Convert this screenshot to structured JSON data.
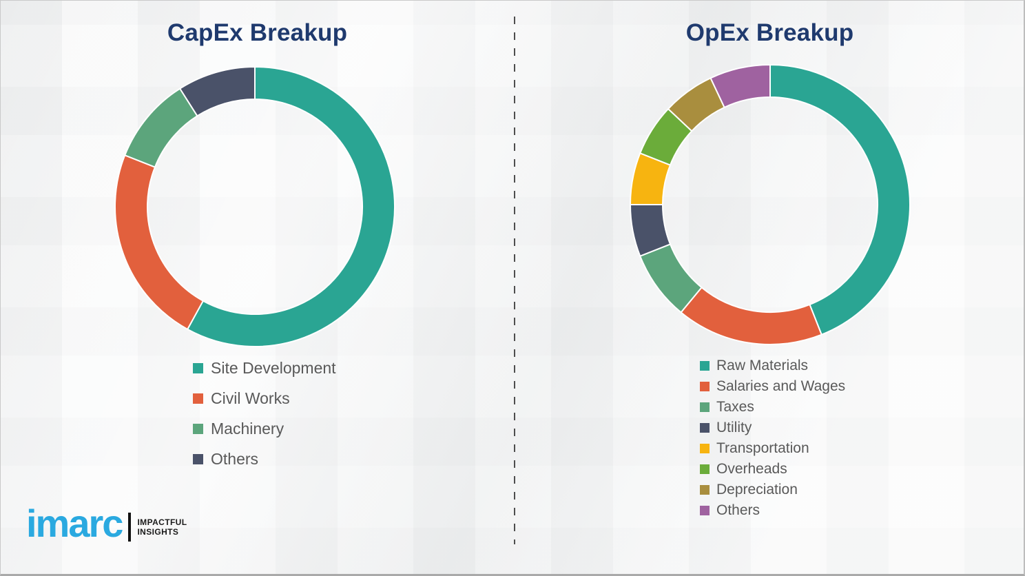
{
  "titles": {
    "capex": "CapEx Breakup",
    "opex": "OpEx Breakup"
  },
  "logo": {
    "brand": "imarc",
    "tagline_line1": "IMPACTFUL",
    "tagline_line2": "INSIGHTS"
  },
  "palette": {
    "teal": "#2aa593",
    "orange": "#e2603d",
    "sage_green": "#5ca57c",
    "dark_navy": "#4a5269",
    "yellow": "#f7b410",
    "bright_green": "#6bac3a",
    "olive": "#a98e3e",
    "purple": "#9f62a0",
    "title_navy": "#1f3a6e",
    "legend_text": "#595959",
    "logo_blue": "#2aa9e0"
  },
  "chart_data": [
    {
      "type": "pie",
      "subtype": "donut",
      "title": "CapEx Breakup",
      "start_angle_deg": 0,
      "direction": "clockwise",
      "legend_position": "below-left",
      "categories": [
        "Site Development",
        "Civil Works",
        "Machinery",
        "Others"
      ],
      "values": [
        58,
        23,
        10,
        9
      ],
      "colors": [
        "#2aa593",
        "#e2603d",
        "#5ca57c",
        "#4a5269"
      ]
    },
    {
      "type": "pie",
      "subtype": "donut",
      "title": "OpEx Breakup",
      "start_angle_deg": 0,
      "direction": "clockwise",
      "legend_position": "below-left",
      "categories": [
        "Raw Materials",
        "Salaries and Wages",
        "Taxes",
        "Utility",
        "Transportation",
        "Overheads",
        "Depreciation",
        "Others"
      ],
      "values": [
        44,
        17,
        8,
        6,
        6,
        6,
        6,
        7
      ],
      "colors": [
        "#2aa593",
        "#e2603d",
        "#5ca57c",
        "#4a5269",
        "#f7b410",
        "#6bac3a",
        "#a98e3e",
        "#9f62a0"
      ]
    }
  ]
}
